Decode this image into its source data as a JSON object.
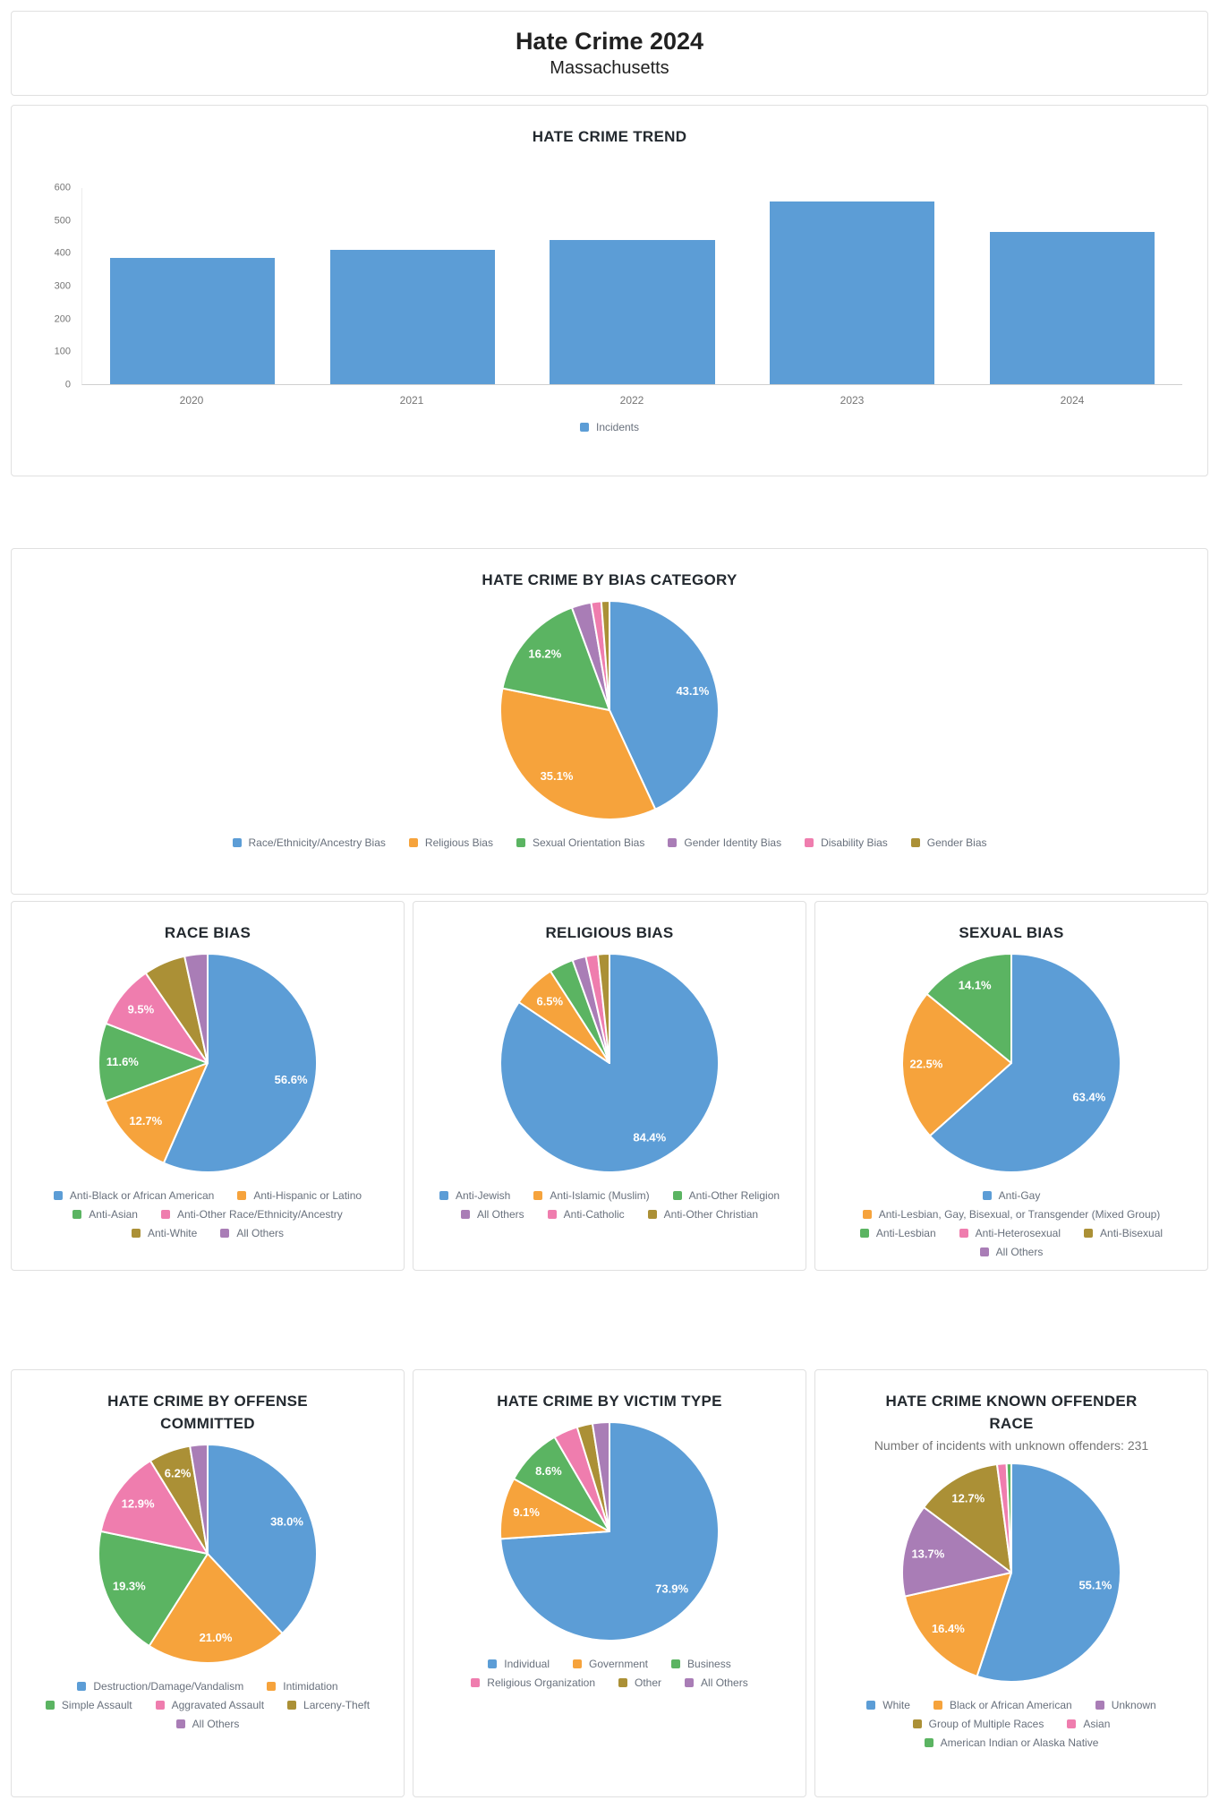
{
  "header": {
    "title": "Hate Crime 2024",
    "subtitle": "Massachusetts"
  },
  "palette": {
    "blue": "#5C9DD6",
    "orange": "#F6A33C",
    "green": "#5BB462",
    "pink": "#EF7DAE",
    "purple": "#A97DB6",
    "gold": "#AB9036"
  },
  "chart_data": [
    {
      "id": "trend",
      "type": "bar",
      "title": "HATE CRIME TREND",
      "categories": [
        "2020",
        "2021",
        "2022",
        "2023",
        "2024"
      ],
      "values": [
        385,
        412,
        440,
        558,
        465
      ],
      "ylim": [
        0,
        600
      ],
      "yticks": [
        0,
        100,
        200,
        300,
        400,
        500,
        600
      ],
      "grid": false,
      "legend_position": "bottom",
      "series": [
        {
          "name": "Incidents",
          "color": "#5C9DD6"
        }
      ]
    },
    {
      "id": "bias_category",
      "type": "pie",
      "title": "HATE CRIME BY BIAS CATEGORY",
      "slices": [
        {
          "label": "Race/Ethnicity/Ancestry Bias",
          "value": 43.1,
          "display": "43.1%",
          "color": "#5C9DD6"
        },
        {
          "label": "Religious Bias",
          "value": 35.1,
          "display": "35.1%",
          "color": "#F6A33C"
        },
        {
          "label": "Sexual Orientation Bias",
          "value": 16.2,
          "display": "16.2%",
          "color": "#5BB462"
        },
        {
          "label": "Gender Identity Bias",
          "value": 2.9,
          "display": "",
          "color": "#A97DB6"
        },
        {
          "label": "Disability Bias",
          "value": 1.5,
          "display": "",
          "color": "#EF7DAE"
        },
        {
          "label": "Gender Bias",
          "value": 1.2,
          "display": "",
          "color": "#AB9036"
        }
      ]
    },
    {
      "id": "race_bias",
      "type": "pie",
      "title": "RACE BIAS",
      "slices": [
        {
          "label": "Anti-Black or African American",
          "value": 56.6,
          "display": "56.6%",
          "color": "#5C9DD6"
        },
        {
          "label": "Anti-Hispanic or Latino",
          "value": 12.7,
          "display": "12.7%",
          "color": "#F6A33C"
        },
        {
          "label": "Anti-Asian",
          "value": 11.6,
          "display": "11.6%",
          "color": "#5BB462"
        },
        {
          "label": "Anti-Other Race/Ethnicity/Ancestry",
          "value": 9.5,
          "display": "9.5%",
          "color": "#EF7DAE"
        },
        {
          "label": "Anti-White",
          "value": 6.2,
          "display": "",
          "color": "#AB9036"
        },
        {
          "label": "All Others",
          "value": 3.4,
          "display": "",
          "color": "#A97DB6"
        }
      ]
    },
    {
      "id": "religious_bias",
      "type": "pie",
      "title": "RELIGIOUS BIAS",
      "slices": [
        {
          "label": "Anti-Jewish",
          "value": 84.4,
          "display": "84.4%",
          "color": "#5C9DD6"
        },
        {
          "label": "Anti-Islamic (Muslim)",
          "value": 6.5,
          "display": "6.5%",
          "color": "#F6A33C"
        },
        {
          "label": "Anti-Other Religion",
          "value": 3.6,
          "display": "",
          "color": "#5BB462"
        },
        {
          "label": "All Others",
          "value": 2.0,
          "display": "",
          "color": "#A97DB6"
        },
        {
          "label": "Anti-Catholic",
          "value": 1.8,
          "display": "",
          "color": "#EF7DAE"
        },
        {
          "label": "Anti-Other Christian",
          "value": 1.7,
          "display": "",
          "color": "#AB9036"
        }
      ]
    },
    {
      "id": "sexual_bias",
      "type": "pie",
      "title": "SEXUAL BIAS",
      "slices": [
        {
          "label": "Anti-Gay",
          "value": 63.4,
          "display": "63.4%",
          "color": "#5C9DD6"
        },
        {
          "label": "Anti-Lesbian, Gay, Bisexual, or Transgender (Mixed Group)",
          "value": 22.5,
          "display": "22.5%",
          "color": "#F6A33C"
        },
        {
          "label": "Anti-Lesbian",
          "value": 14.1,
          "display": "14.1%",
          "color": "#5BB462"
        },
        {
          "label": "Anti-Heterosexual",
          "value": 0,
          "display": "",
          "color": "#EF7DAE"
        },
        {
          "label": "Anti-Bisexual",
          "value": 0,
          "display": "",
          "color": "#AB9036"
        },
        {
          "label": "All Others",
          "value": 0,
          "display": "",
          "color": "#A97DB6"
        }
      ]
    },
    {
      "id": "offense",
      "type": "pie",
      "title": "HATE CRIME BY OFFENSE COMMITTED",
      "slices": [
        {
          "label": "Destruction/Damage/Vandalism",
          "value": 38.0,
          "display": "38.0%",
          "color": "#5C9DD6"
        },
        {
          "label": "Intimidation",
          "value": 21.0,
          "display": "21.0%",
          "color": "#F6A33C"
        },
        {
          "label": "Simple Assault",
          "value": 19.3,
          "display": "19.3%",
          "color": "#5BB462"
        },
        {
          "label": "Aggravated Assault",
          "value": 12.9,
          "display": "12.9%",
          "color": "#EF7DAE"
        },
        {
          "label": "Larceny-Theft",
          "value": 6.2,
          "display": "6.2%",
          "color": "#AB9036"
        },
        {
          "label": "All Others",
          "value": 2.6,
          "display": "",
          "color": "#A97DB6"
        }
      ]
    },
    {
      "id": "victim_type",
      "type": "pie",
      "title": "HATE CRIME BY VICTIM TYPE",
      "slices": [
        {
          "label": "Individual",
          "value": 73.9,
          "display": "73.9%",
          "color": "#5C9DD6"
        },
        {
          "label": "Government",
          "value": 9.1,
          "display": "9.1%",
          "color": "#F6A33C"
        },
        {
          "label": "Business",
          "value": 8.6,
          "display": "8.6%",
          "color": "#5BB462"
        },
        {
          "label": "Religious Organization",
          "value": 3.6,
          "display": "",
          "color": "#EF7DAE"
        },
        {
          "label": "Other",
          "value": 2.3,
          "display": "",
          "color": "#AB9036"
        },
        {
          "label": "All Others",
          "value": 2.5,
          "display": "",
          "color": "#A97DB6"
        }
      ]
    },
    {
      "id": "offender_race",
      "type": "pie",
      "title": "HATE CRIME KNOWN OFFENDER RACE",
      "subtitle": "Number of incidents with unknown offenders: 231",
      "slices": [
        {
          "label": "White",
          "value": 55.1,
          "display": "55.1%",
          "color": "#5C9DD6"
        },
        {
          "label": "Black or African American",
          "value": 16.4,
          "display": "16.4%",
          "color": "#F6A33C"
        },
        {
          "label": "Unknown",
          "value": 13.7,
          "display": "13.7%",
          "color": "#A97DB6"
        },
        {
          "label": "Group of Multiple Races",
          "value": 12.7,
          "display": "12.7%",
          "color": "#AB9036"
        },
        {
          "label": "Asian",
          "value": 1.4,
          "display": "",
          "color": "#EF7DAE"
        },
        {
          "label": "American Indian or Alaska Native",
          "value": 0.7,
          "display": "",
          "color": "#5BB462"
        }
      ]
    }
  ]
}
